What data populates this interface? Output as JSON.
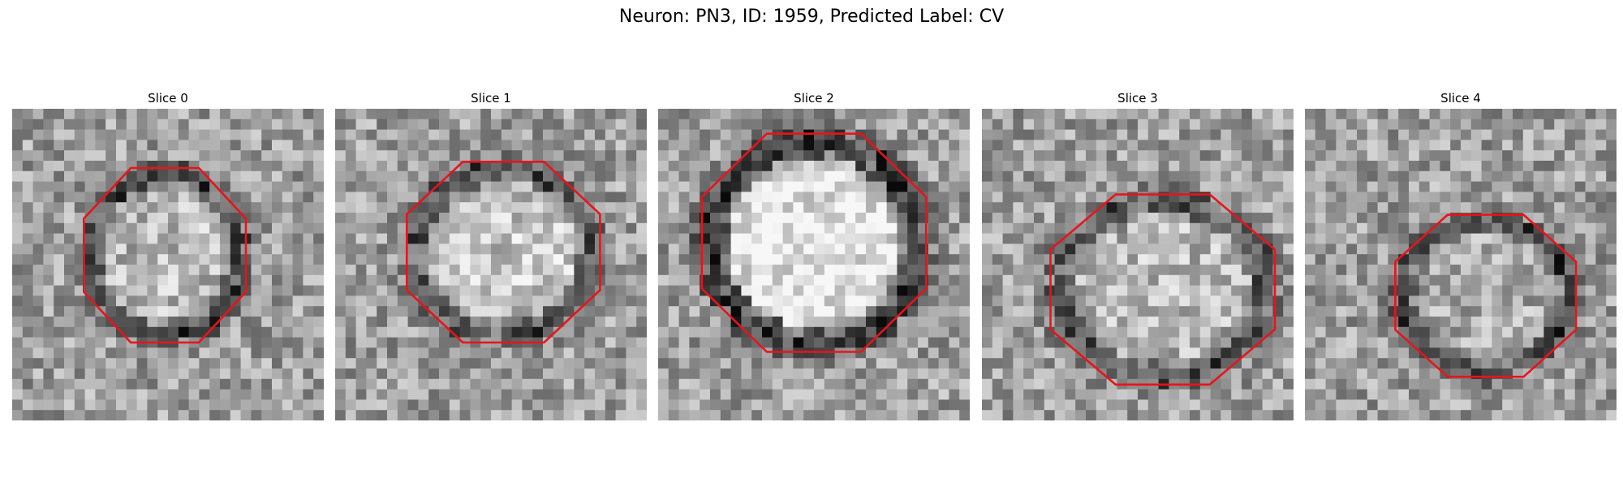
{
  "figure": {
    "title": "Neuron: PN3, ID: 1959, Predicted Label: CV"
  },
  "contour_color": "#e8141a",
  "panels": [
    {
      "title": "Slice 0",
      "center": [
        0.49,
        0.47
      ],
      "size": [
        0.52,
        0.56
      ],
      "ring_darkness": 0.35,
      "blob_brightness": 0.1,
      "seed": 11
    },
    {
      "title": "Slice 1",
      "center": [
        0.54,
        0.46
      ],
      "size": [
        0.62,
        0.58
      ],
      "ring_darkness": 0.3,
      "blob_brightness": 0.15,
      "seed": 23
    },
    {
      "title": "Slice 2",
      "center": [
        0.5,
        0.43
      ],
      "size": [
        0.72,
        0.7
      ],
      "ring_darkness": 0.45,
      "blob_brightness": 0.28,
      "seed": 37
    },
    {
      "title": "Slice 3",
      "center": [
        0.58,
        0.58
      ],
      "size": [
        0.72,
        0.61
      ],
      "ring_darkness": 0.3,
      "blob_brightness": 0.1,
      "seed": 41
    },
    {
      "title": "Slice 4",
      "center": [
        0.58,
        0.6
      ],
      "size": [
        0.58,
        0.52
      ],
      "ring_darkness": 0.35,
      "blob_brightness": 0.05,
      "seed": 53
    }
  ]
}
